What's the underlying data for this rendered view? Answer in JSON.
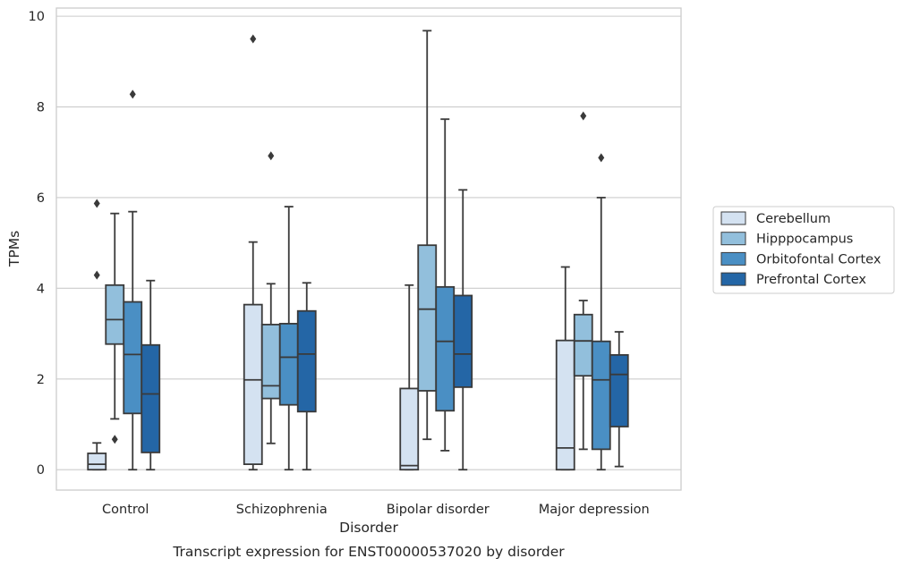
{
  "chart_data": {
    "type": "boxplot",
    "xlabel": "Disorder",
    "ylabel": "TPMs",
    "caption": "Transcript expression for ENST00000537020 by disorder",
    "ylim": [
      -0.45,
      10.18
    ],
    "yticks": [
      0,
      2,
      4,
      6,
      8,
      10
    ],
    "grid": "horizontal",
    "legend_position": "right",
    "categories": [
      "Control",
      "Schizophrenia",
      "Bipolar disorder",
      "Major depression"
    ],
    "series": [
      {
        "name": "Cerebellum",
        "color": "#d4e2f1",
        "boxes": [
          {
            "low": 0.0,
            "q1": 0.0,
            "median": 0.12,
            "q3": 0.36,
            "high": 0.59,
            "outliers": []
          },
          {
            "low": 0.0,
            "q1": 0.12,
            "median": 1.98,
            "q3": 3.64,
            "high": 5.02,
            "outliers": [
              9.5
            ]
          },
          {
            "low": 0.0,
            "q1": 0.0,
            "median": 0.09,
            "q3": 1.79,
            "high": 4.07,
            "outliers": []
          },
          {
            "low": 0.0,
            "q1": 0.0,
            "median": 0.48,
            "q3": 2.85,
            "high": 4.47,
            "outliers": []
          }
        ]
      },
      {
        "name": "Hipppocampus",
        "color": "#92bfdc",
        "boxes": [
          {
            "low": 1.12,
            "q1": 2.77,
            "median": 3.31,
            "q3": 4.07,
            "high": 5.65,
            "outliers": [
              0.67
            ]
          },
          {
            "low": 0.58,
            "q1": 1.57,
            "median": 1.85,
            "q3": 3.2,
            "high": 4.1,
            "outliers": [
              6.92
            ]
          },
          {
            "low": 0.67,
            "q1": 1.74,
            "median": 3.54,
            "q3": 4.95,
            "high": 9.68,
            "outliers": []
          },
          {
            "low": 0.45,
            "q1": 2.07,
            "median": 2.84,
            "q3": 3.42,
            "high": 3.73,
            "outliers": [
              7.8
            ]
          }
        ]
      },
      {
        "name": "Orbitofontal Cortex",
        "color": "#4a8fc4",
        "boxes": [
          {
            "low": 0.0,
            "q1": 1.24,
            "median": 2.54,
            "q3": 3.7,
            "high": 5.69,
            "outliers": [
              8.28
            ]
          },
          {
            "low": 0.0,
            "q1": 1.43,
            "median": 2.48,
            "q3": 3.22,
            "high": 5.8,
            "outliers": []
          },
          {
            "low": 0.42,
            "q1": 1.3,
            "median": 2.83,
            "q3": 4.03,
            "high": 7.73,
            "outliers": []
          },
          {
            "low": 0.0,
            "q1": 0.45,
            "median": 1.98,
            "q3": 2.83,
            "high": 6.0,
            "outliers": [
              6.88
            ]
          }
        ]
      },
      {
        "name": "Prefrontal Cortex",
        "color": "#2466a6",
        "boxes": [
          {
            "low": 0.0,
            "q1": 0.38,
            "median": 1.67,
            "q3": 2.75,
            "high": 4.17,
            "outliers": []
          },
          {
            "low": 0.0,
            "q1": 1.28,
            "median": 2.55,
            "q3": 3.5,
            "high": 4.12,
            "outliers": []
          },
          {
            "low": 0.0,
            "q1": 1.82,
            "median": 2.55,
            "q3": 3.84,
            "high": 6.17,
            "outliers": []
          },
          {
            "low": 0.07,
            "q1": 0.95,
            "median": 2.1,
            "q3": 2.53,
            "high": 3.04,
            "outliers": []
          }
        ]
      }
    ],
    "outliers_extra": [
      {
        "category": 0,
        "series": 0,
        "values": [
          4.29,
          5.87
        ]
      }
    ]
  }
}
